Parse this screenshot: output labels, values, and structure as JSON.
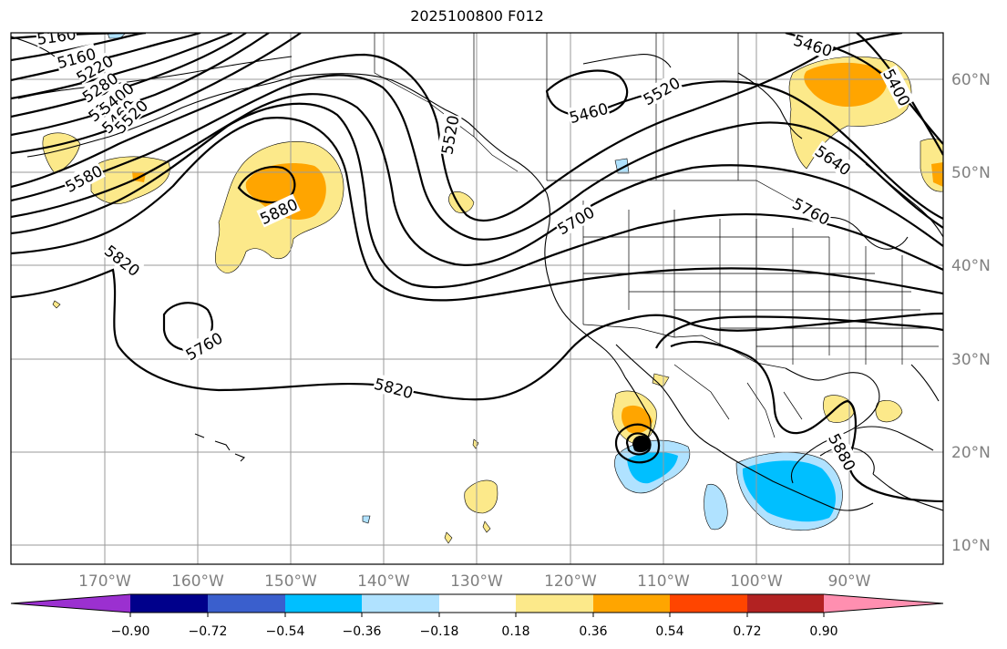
{
  "title": "2025100800 F012",
  "colors": {
    "c1": "#9b30d0",
    "c2": "#00008b",
    "c3": "#3a5fcd",
    "c4": "#00bfff",
    "c5": "#b0e2ff",
    "c6": "#ffffff",
    "c7": "#fce98a",
    "c8": "#ffa500",
    "c9": "#ff4500",
    "c10": "#b22222",
    "c11": "#ff8fb0"
  },
  "longitude_labels": [
    "170°W",
    "160°W",
    "150°W",
    "140°W",
    "130°W",
    "120°W",
    "110°W",
    "100°W",
    "90°W"
  ],
  "latitude_labels": [
    "60°N",
    "50°N",
    "40°N",
    "30°N",
    "20°N",
    "10°N"
  ],
  "contour_labels": [
    "5160",
    "5160",
    "5220",
    "5280",
    "5340",
    "5400",
    "5460",
    "5520",
    "5580",
    "5880",
    "5820",
    "5760",
    "5820",
    "5520",
    "5460",
    "5520",
    "5700",
    "5460",
    "5400",
    "5640",
    "5760",
    "5880"
  ],
  "colorbar": {
    "ticks": [
      "−0.90",
      "−0.72",
      "−0.54",
      "−0.36",
      "−0.18",
      "0.18",
      "0.36",
      "0.54",
      "0.72",
      "0.90"
    ]
  }
}
